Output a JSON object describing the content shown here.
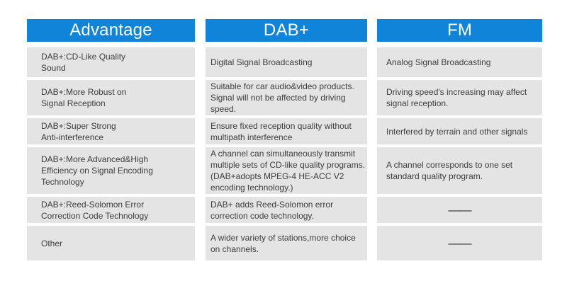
{
  "table": {
    "columns": [
      {
        "header": "Advantage",
        "cells": [
          "DAB+:CD-Like Quality\nSound",
          "DAB+:More Robust on\nSignal Reception",
          "DAB+:Super Strong\nAnti-interference",
          "DAB+:More Advanced&High\nEfficiency on Signal Encoding\nTechnology",
          "DAB+:Reed-Solomon Error\nCorrection Code Technology",
          "Other"
        ]
      },
      {
        "header": "DAB+",
        "cells": [
          "Digital Signal Broadcasting",
          "Suitable for car audio&video products.\nSignal will not be affected by driving\nspeed.",
          "Ensure fixed reception quality without\nmultipath interference",
          "A channel can simultaneously transmit\nmultiple sets of CD-like quality programs.\n(DAB+adopts MPEG-4 HE-ACC V2\nencoding technology.)",
          "DAB+ adds Reed-Solomon error\ncorrection code technology.",
          "A wider variety of stations,more choice\non channels."
        ]
      },
      {
        "header": "FM",
        "cells": [
          "Analog Signal Broadcasting",
          "Driving speed's increasing may affect\nsignal reception.",
          "Interfered by terrain and other signals",
          "A channel corresponds to one set\nstandard quality program.",
          "——",
          "——"
        ]
      }
    ]
  },
  "colors": {
    "header_bg": "#0f84d9",
    "header_text": "#ffffff",
    "cell_bg": "#e4e4e4",
    "cell_text": "#3d3d3d",
    "page_bg": "#ffffff"
  }
}
